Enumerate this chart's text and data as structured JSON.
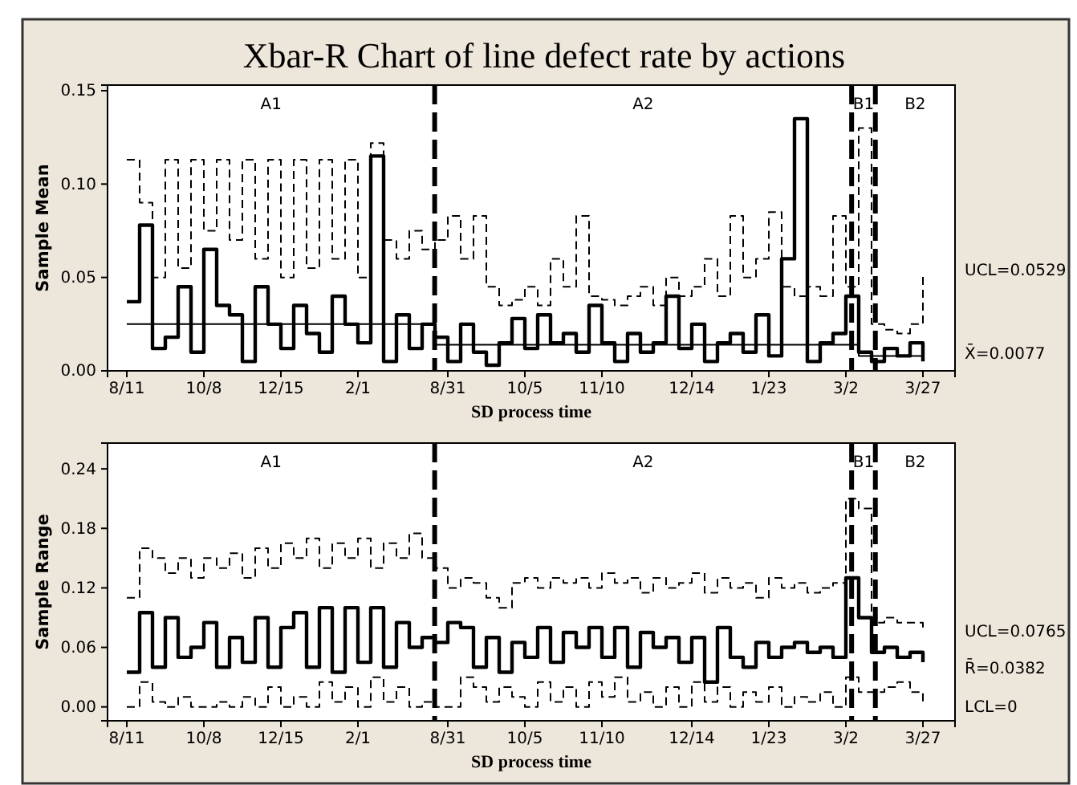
{
  "chart_data": [
    {
      "type": "step",
      "title": "Xbar-R Chart of  line defect rate by actions",
      "xlabel": "SD process time",
      "ylabel": "Sample Mean",
      "categories": [
        "8/11",
        null,
        null,
        null,
        null,
        null,
        "10/8",
        null,
        null,
        null,
        null,
        null,
        "12/15",
        null,
        null,
        null,
        null,
        null,
        "2/1",
        null,
        null,
        null,
        null,
        null,
        null,
        "8/31",
        null,
        null,
        null,
        null,
        null,
        "10/5",
        null,
        null,
        null,
        null,
        null,
        "11/10",
        null,
        null,
        null,
        null,
        null,
        null,
        "12/14",
        null,
        null,
        null,
        null,
        null,
        "1/23",
        null,
        null,
        null,
        null,
        null,
        "3/2",
        null,
        null,
        null,
        null,
        null,
        "3/27"
      ],
      "ylim": [
        0,
        0.153
      ],
      "yticks": [
        {
          "value": 0,
          "label": "0.00"
        },
        {
          "value": 0.05,
          "label": "0.05"
        },
        {
          "value": 0.1,
          "label": "0.10"
        },
        {
          "value": 0.15,
          "label": "0.15"
        }
      ],
      "series": [
        {
          "color": "#000000",
          "line_style": "solid",
          "values": [
            0.037,
            0.078,
            0.012,
            0.018,
            0.045,
            0.01,
            0.065,
            0.035,
            0.03,
            0.005,
            0.045,
            0.025,
            0.012,
            0.035,
            0.02,
            0.01,
            0.04,
            0.025,
            0.015,
            0.115,
            0.005,
            0.03,
            0.012,
            0.025,
            0.018,
            0.005,
            0.025,
            0.01,
            0.003,
            0.015,
            0.028,
            0.012,
            0.03,
            0.015,
            0.02,
            0.01,
            0.035,
            0.015,
            0.005,
            0.02,
            0.01,
            0.015,
            0.04,
            0.012,
            0.025,
            0.005,
            0.015,
            0.02,
            0.01,
            0.03,
            0.008,
            0.06,
            0.135,
            0.005,
            0.015,
            0.02,
            0.04,
            0.01,
            0.005,
            0.012,
            0.008,
            0.015,
            0.005
          ]
        },
        {
          "color": "#000000",
          "line_style": "dashed",
          "values": [
            0.113,
            0.09,
            0.05,
            0.113,
            0.055,
            0.113,
            0.075,
            0.113,
            0.07,
            0.113,
            0.06,
            0.113,
            0.05,
            0.113,
            0.055,
            0.113,
            0.06,
            0.113,
            0.05,
            0.122,
            0.07,
            0.06,
            0.075,
            0.065,
            0.07,
            0.083,
            0.06,
            0.083,
            0.045,
            0.035,
            0.038,
            0.045,
            0.035,
            0.06,
            0.045,
            0.083,
            0.04,
            0.038,
            0.035,
            0.04,
            0.045,
            0.035,
            0.05,
            0.04,
            0.045,
            0.06,
            0.04,
            0.083,
            0.05,
            0.06,
            0.085,
            0.045,
            0.04,
            0.045,
            0.04,
            0.083,
            0.045,
            0.13,
            0.025,
            0.022,
            0.02,
            0.025,
            0.052
          ]
        },
        {
          "color": "#000000",
          "line_style": "solid",
          "values": [
            0.025,
            0.025,
            0.025,
            0.025,
            0.025,
            0.025,
            0.025,
            0.025,
            0.025,
            0.025,
            0.025,
            0.025,
            0.025,
            0.025,
            0.025,
            0.025,
            0.025,
            0.025,
            0.025,
            0.025,
            0.025,
            0.025,
            0.025,
            0.025,
            0.014,
            0.014,
            0.014,
            0.014,
            0.014,
            0.014,
            0.014,
            0.014,
            0.014,
            0.014,
            0.014,
            0.014,
            0.014,
            0.014,
            0.014,
            0.014,
            0.014,
            0.014,
            0.014,
            0.014,
            0.014,
            0.014,
            0.014,
            0.014,
            0.014,
            0.014,
            0.014,
            0.014,
            0.014,
            0.014,
            0.014,
            0.014,
            0.014,
            0.008,
            0.008,
            0.008,
            0.008,
            0.008,
            0.008
          ]
        }
      ],
      "annotations": [
        "A1",
        "A2",
        "B1",
        "B2",
        "UCL=0.0529",
        "X̄=0.0077"
      ]
    },
    {
      "type": "step",
      "xlabel": "SD process time",
      "ylabel": "Sample Range",
      "categories": [
        "8/11",
        null,
        null,
        null,
        null,
        null,
        "10/8",
        null,
        null,
        null,
        null,
        null,
        "12/15",
        null,
        null,
        null,
        null,
        null,
        "2/1",
        null,
        null,
        null,
        null,
        null,
        null,
        "8/31",
        null,
        null,
        null,
        null,
        null,
        "10/5",
        null,
        null,
        null,
        null,
        null,
        "11/10",
        null,
        null,
        null,
        null,
        null,
        null,
        "12/14",
        null,
        null,
        null,
        null,
        null,
        "1/23",
        null,
        null,
        null,
        null,
        null,
        "3/2",
        null,
        null,
        null,
        null,
        null,
        "3/27"
      ],
      "ylim": [
        -0.014,
        0.266
      ],
      "yticks": [
        {
          "value": 0,
          "label": "0.00"
        },
        {
          "value": 0.06,
          "label": "0.06"
        },
        {
          "value": 0.12,
          "label": "0.12"
        },
        {
          "value": 0.18,
          "label": "0.18"
        },
        {
          "value": 0.24,
          "label": "0.24"
        }
      ],
      "series": [
        {
          "color": "#000000",
          "line_style": "solid",
          "values": [
            0.035,
            0.095,
            0.04,
            0.09,
            0.05,
            0.06,
            0.085,
            0.04,
            0.07,
            0.045,
            0.09,
            0.04,
            0.08,
            0.095,
            0.04,
            0.1,
            0.035,
            0.1,
            0.045,
            0.1,
            0.04,
            0.085,
            0.06,
            0.07,
            0.065,
            0.085,
            0.08,
            0.04,
            0.07,
            0.035,
            0.065,
            0.05,
            0.08,
            0.045,
            0.075,
            0.06,
            0.08,
            0.05,
            0.08,
            0.04,
            0.075,
            0.06,
            0.07,
            0.045,
            0.07,
            0.025,
            0.08,
            0.05,
            0.04,
            0.065,
            0.05,
            0.06,
            0.065,
            0.055,
            0.06,
            0.05,
            0.13,
            0.09,
            0.055,
            0.06,
            0.05,
            0.055,
            0.045
          ]
        },
        {
          "color": "#000000",
          "line_style": "dashed",
          "values": [
            0.11,
            0.16,
            0.15,
            0.135,
            0.15,
            0.13,
            0.15,
            0.14,
            0.155,
            0.13,
            0.16,
            0.14,
            0.165,
            0.15,
            0.17,
            0.14,
            0.165,
            0.15,
            0.17,
            0.14,
            0.165,
            0.15,
            0.175,
            0.15,
            0.14,
            0.12,
            0.13,
            0.125,
            0.11,
            0.1,
            0.125,
            0.13,
            0.12,
            0.13,
            0.125,
            0.13,
            0.12,
            0.135,
            0.125,
            0.13,
            0.115,
            0.13,
            0.12,
            0.125,
            0.135,
            0.115,
            0.13,
            0.12,
            0.125,
            0.11,
            0.13,
            0.12,
            0.125,
            0.115,
            0.12,
            0.125,
            0.21,
            0.2,
            0.085,
            0.09,
            0.085,
            0.085,
            0.08
          ]
        },
        {
          "color": "#000000",
          "line_style": "dashed",
          "values": [
            0,
            0.025,
            0.005,
            0,
            0.01,
            0,
            0,
            0.005,
            0,
            0.01,
            0,
            0.02,
            0,
            0.01,
            0,
            0.025,
            0.005,
            0.02,
            0,
            0.03,
            0.005,
            0.02,
            0,
            0.005,
            0,
            0,
            0.03,
            0.02,
            0.005,
            0.02,
            0.01,
            0,
            0.025,
            0.005,
            0.02,
            0,
            0.025,
            0.01,
            0.03,
            0.005,
            0.015,
            0,
            0.02,
            0,
            0.025,
            0.005,
            0.02,
            0,
            0.015,
            0.005,
            0.02,
            0,
            0.01,
            0.005,
            0.015,
            0,
            0.03,
            0.015,
            0.015,
            0.02,
            0.025,
            0.015,
            0.005
          ]
        }
      ],
      "annotations": [
        "A1",
        "A2",
        "B1",
        "B2",
        "UCL=0.0765",
        "R̄=0.0382",
        "LCL=0"
      ]
    }
  ]
}
